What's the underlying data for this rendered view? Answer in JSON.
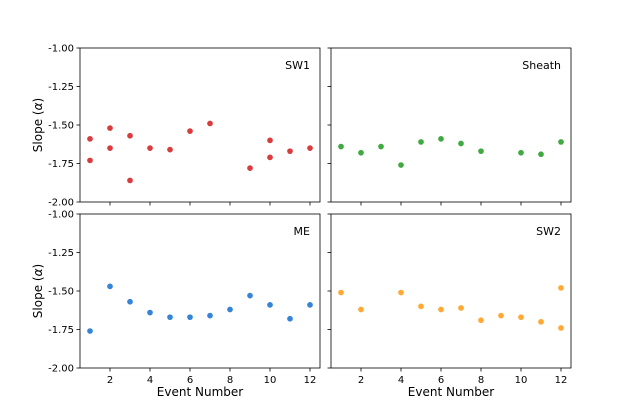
{
  "chart_data": {
    "type": "scatter",
    "layout": "2x2 grid, shared axes",
    "xlabel": "Event Number",
    "ylabel": "Slope (α)",
    "ylabel_parts": [
      "Slope (",
      "α",
      ")"
    ],
    "xlim": [
      0.5,
      12.5
    ],
    "ylim": [
      -2.0,
      -1.0
    ],
    "xticks": [
      2,
      4,
      6,
      8,
      10,
      12
    ],
    "yticks": [
      -1.0,
      -1.25,
      -1.5,
      -1.75,
      -2.0
    ],
    "ytick_labels": [
      "-1.00",
      "-1.25",
      "-1.50",
      "-1.75",
      "-2.00"
    ],
    "panels": [
      {
        "name": "SW1",
        "color": "#d62728",
        "points": [
          {
            "x": 1,
            "y": -1.59
          },
          {
            "x": 1,
            "y": -1.73
          },
          {
            "x": 2,
            "y": -1.52
          },
          {
            "x": 2,
            "y": -1.65
          },
          {
            "x": 3,
            "y": -1.57
          },
          {
            "x": 3,
            "y": -1.86
          },
          {
            "x": 4,
            "y": -1.65
          },
          {
            "x": 5,
            "y": -1.66
          },
          {
            "x": 6,
            "y": -1.54
          },
          {
            "x": 7,
            "y": -1.49
          },
          {
            "x": 9,
            "y": -1.78
          },
          {
            "x": 10,
            "y": -1.6
          },
          {
            "x": 10,
            "y": -1.71
          },
          {
            "x": 11,
            "y": -1.67
          },
          {
            "x": 12,
            "y": -1.65
          }
        ]
      },
      {
        "name": "Sheath",
        "color": "#2ca02c",
        "points": [
          {
            "x": 1,
            "y": -1.64
          },
          {
            "x": 2,
            "y": -1.68
          },
          {
            "x": 3,
            "y": -1.64
          },
          {
            "x": 4,
            "y": -1.76
          },
          {
            "x": 5,
            "y": -1.61
          },
          {
            "x": 6,
            "y": -1.59
          },
          {
            "x": 7,
            "y": -1.62
          },
          {
            "x": 8,
            "y": -1.67
          },
          {
            "x": 10,
            "y": -1.68
          },
          {
            "x": 11,
            "y": -1.69
          },
          {
            "x": 12,
            "y": -1.61
          }
        ]
      },
      {
        "name": "ME",
        "color": "#1f77d4",
        "points": [
          {
            "x": 1,
            "y": -1.76
          },
          {
            "x": 2,
            "y": -1.47
          },
          {
            "x": 3,
            "y": -1.57
          },
          {
            "x": 4,
            "y": -1.64
          },
          {
            "x": 5,
            "y": -1.67
          },
          {
            "x": 6,
            "y": -1.67
          },
          {
            "x": 7,
            "y": -1.66
          },
          {
            "x": 8,
            "y": -1.62
          },
          {
            "x": 9,
            "y": -1.53
          },
          {
            "x": 10,
            "y": -1.59
          },
          {
            "x": 11,
            "y": -1.68
          },
          {
            "x": 12,
            "y": -1.59
          }
        ]
      },
      {
        "name": "SW2",
        "color": "#ff9f1c",
        "points": [
          {
            "x": 1,
            "y": -1.51
          },
          {
            "x": 2,
            "y": -1.62
          },
          {
            "x": 4,
            "y": -1.51
          },
          {
            "x": 5,
            "y": -1.6
          },
          {
            "x": 6,
            "y": -1.62
          },
          {
            "x": 7,
            "y": -1.61
          },
          {
            "x": 8,
            "y": -1.69
          },
          {
            "x": 9,
            "y": -1.66
          },
          {
            "x": 10,
            "y": -1.67
          },
          {
            "x": 11,
            "y": -1.7
          },
          {
            "x": 12,
            "y": -1.48
          },
          {
            "x": 12,
            "y": -1.74
          }
        ]
      }
    ]
  }
}
